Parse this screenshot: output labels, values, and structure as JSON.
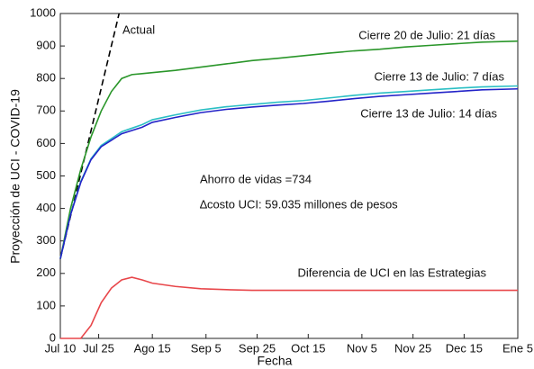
{
  "chart_data": {
    "type": "line",
    "xlabel": "Fecha",
    "ylabel": "Proyección de UCI - COVID-19",
    "xlim": [
      0,
      179
    ],
    "xticks": [
      {
        "value": 0,
        "label": "Jul 10"
      },
      {
        "value": 15,
        "label": "Jul 25"
      },
      {
        "value": 36,
        "label": "Ago 15"
      },
      {
        "value": 57,
        "label": "Sep 5"
      },
      {
        "value": 77,
        "label": "Sep 25"
      },
      {
        "value": 97,
        "label": "Oct 15"
      },
      {
        "value": 118,
        "label": "Nov 5"
      },
      {
        "value": 138,
        "label": "Nov 25"
      },
      {
        "value": 158,
        "label": "Dec 15"
      },
      {
        "value": 179,
        "label": "Ene 5"
      }
    ],
    "ylim": [
      0,
      1000
    ],
    "yticks": [
      0,
      100,
      200,
      300,
      400,
      500,
      600,
      700,
      800,
      900,
      1000
    ],
    "x": [
      0,
      4,
      8,
      12,
      16,
      20,
      24,
      28,
      32,
      36,
      45,
      55,
      65,
      75,
      85,
      95,
      105,
      115,
      125,
      135,
      145,
      155,
      165,
      179
    ],
    "series": [
      {
        "name": "Actual",
        "color": "#000000",
        "linestyle": "dashed",
        "x": [
          0,
          23
        ],
        "values": [
          245,
          1000
        ]
      },
      {
        "name": "Cierre 20 de Julio: 21 días",
        "color": "#2a962a",
        "values": [
          245,
          400,
          520,
          620,
          700,
          760,
          800,
          812,
          815,
          818,
          825,
          835,
          845,
          855,
          862,
          870,
          878,
          885,
          890,
          897,
          902,
          907,
          912,
          915
        ]
      },
      {
        "name": "Cierre 13 de Julio: 7 días",
        "color": "#2bbfc4",
        "values": [
          245,
          382,
          483,
          553,
          594,
          615,
          636,
          647,
          658,
          673,
          688,
          703,
          713,
          720,
          727,
          732,
          740,
          748,
          755,
          760,
          765,
          770,
          774,
          777
        ]
      },
      {
        "name": "Cierre 13 de Julio: 14 días",
        "color": "#2323c8",
        "values": [
          245,
          380,
          480,
          550,
          590,
          610,
          630,
          640,
          650,
          665,
          680,
          695,
          705,
          712,
          718,
          723,
          730,
          738,
          745,
          750,
          755,
          760,
          765,
          768
        ]
      },
      {
        "name": "Diferencia de UCI en las Estrategias",
        "color": "#e8464a",
        "values": [
          0,
          0,
          0,
          40,
          110,
          155,
          180,
          188,
          180,
          170,
          160,
          153,
          150,
          148,
          148,
          148,
          148,
          148,
          148,
          148,
          148,
          148,
          148,
          148
        ]
      }
    ],
    "annotations": [
      "Ahorro de vidas =734",
      "∆costo UCI: 59.035 millones de pesos"
    ]
  }
}
